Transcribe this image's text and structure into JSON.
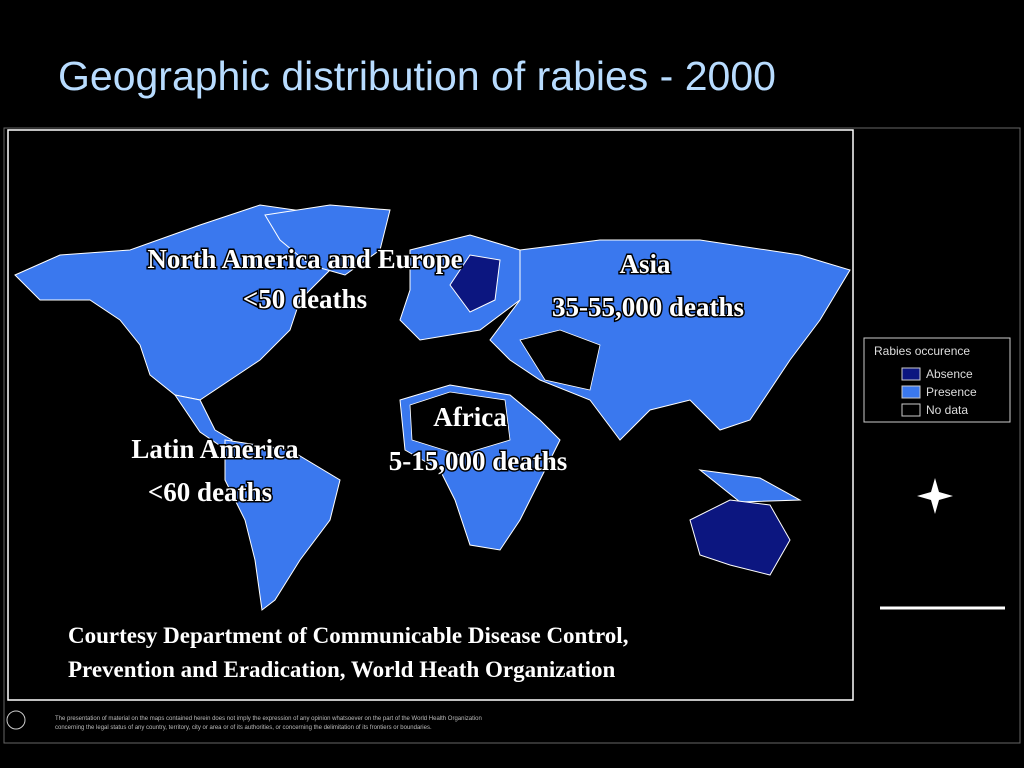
{
  "title": "Geographic distribution of rabies - 2000",
  "map": {
    "regions": [
      {
        "name": "North America and Europe",
        "deaths": "<50 deaths"
      },
      {
        "name": "Asia",
        "deaths": "35-55,000 deaths"
      },
      {
        "name": "Africa",
        "deaths": "5-15,000 deaths"
      },
      {
        "name": "Latin America",
        "deaths": "<60 deaths"
      }
    ],
    "legend": {
      "title": "Rabies occurence",
      "items": [
        {
          "label": "Absence",
          "color": "#0c1680"
        },
        {
          "label": "Presence",
          "color": "#3a78ee"
        },
        {
          "label": "No data",
          "color": "#000000"
        }
      ]
    }
  },
  "credit": [
    "Courtesy Department of Communicable Disease Control,",
    "Prevention and Eradication, World Heath Organization"
  ],
  "disclaimer": [
    "The presentation of material on the maps contained herein does not imply the expression of any opinion whatsoever on the part of the World Health Organization",
    "concerning the legal status of any country, territory, city or area or of its authorities, or concerning the delimitation of its frontiers or boundaries."
  ]
}
